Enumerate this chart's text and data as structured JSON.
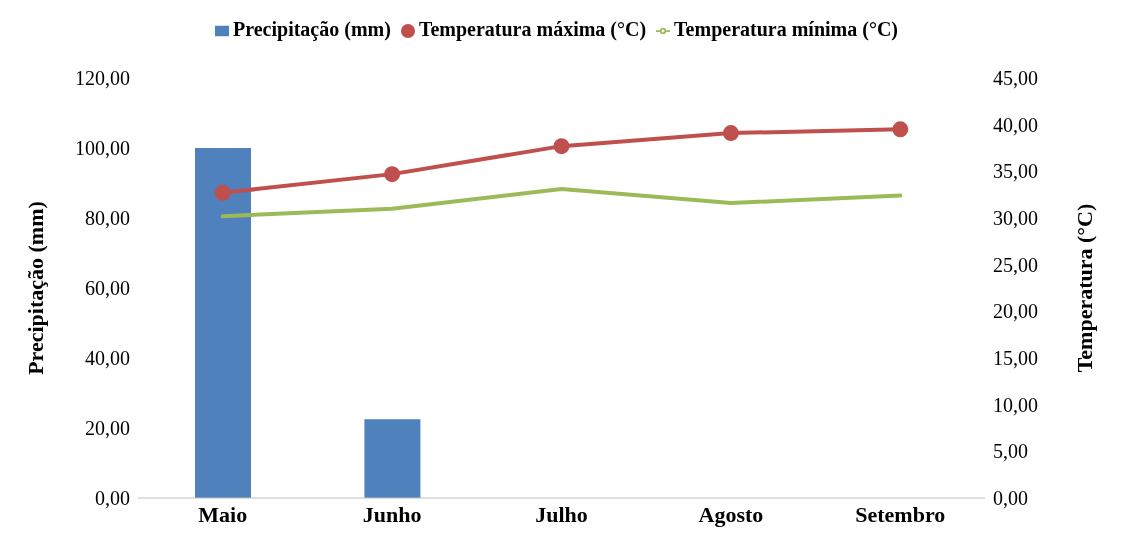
{
  "chart_data": {
    "type": "bar",
    "categories": [
      "Maio",
      "Junho",
      "Julho",
      "Agosto",
      "Setembro"
    ],
    "ylabel": "Precipitação (mm)",
    "y2label": "Temperatura (°C)",
    "series": [
      {
        "name": "Precipitação (mm)",
        "color": "#4f81bd",
        "values": [
          100.0,
          22.5,
          null,
          null,
          null
        ]
      },
      {
        "name": "Temperatura máxima (°C)",
        "type": "line",
        "axis": "y2",
        "color": "#c0504d",
        "marker": "circle",
        "values": [
          32.7,
          34.7,
          37.7,
          39.1,
          39.5
        ]
      },
      {
        "name": "Temperatura mínima (°C)",
        "type": "line",
        "axis": "y2",
        "color": "#9bbb59",
        "marker": "none",
        "values": [
          30.2,
          31.0,
          33.1,
          31.6,
          32.4
        ]
      }
    ],
    "ylim": [
      0,
      120
    ],
    "yticks": [
      {
        "value": 0,
        "label": "0,00"
      },
      {
        "value": 20,
        "label": "20,00"
      },
      {
        "value": 40,
        "label": "40,00"
      },
      {
        "value": 60,
        "label": "60,00"
      },
      {
        "value": 80,
        "label": "80,00"
      },
      {
        "value": 100,
        "label": "100,00"
      },
      {
        "value": 120,
        "label": "120,00"
      }
    ],
    "y2lim": [
      0,
      45
    ],
    "y2ticks": [
      {
        "value": 0,
        "label": "0,00"
      },
      {
        "value": 5,
        "label": "5,00"
      },
      {
        "value": 10,
        "label": "10,00"
      },
      {
        "value": 15,
        "label": "15,00"
      },
      {
        "value": 20,
        "label": "20,00"
      },
      {
        "value": 25,
        "label": "25,00"
      },
      {
        "value": 30,
        "label": "30,00"
      },
      {
        "value": 35,
        "label": "35,00"
      },
      {
        "value": 40,
        "label": "40,00"
      },
      {
        "value": 45,
        "label": "45,00"
      }
    ],
    "grid": false,
    "legend": "top"
  }
}
